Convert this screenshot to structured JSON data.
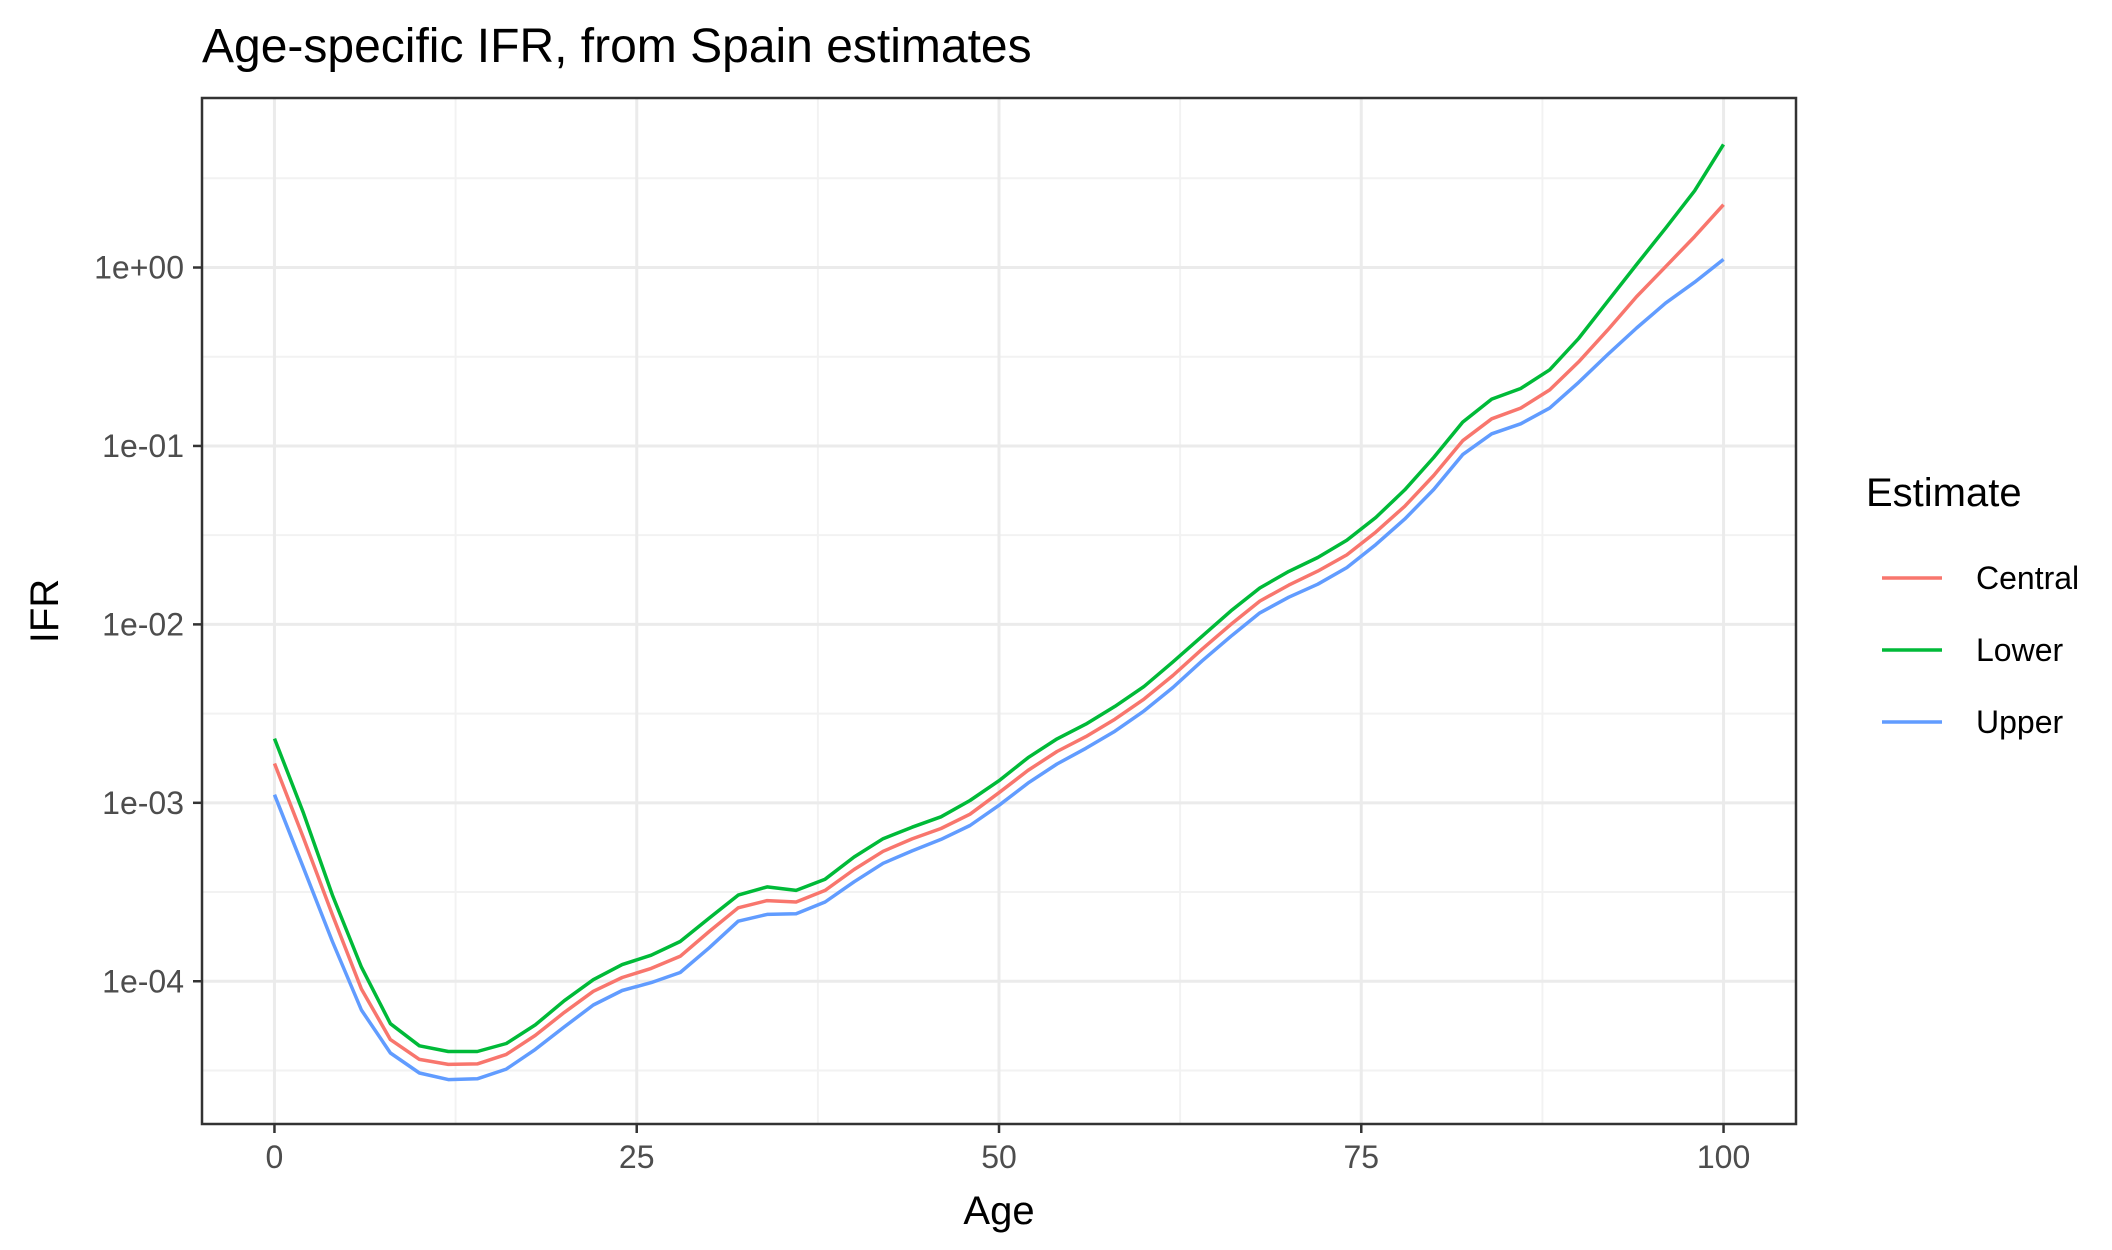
{
  "chart_data": {
    "type": "line",
    "title": "Age-specific IFR, from Spain estimates",
    "xlabel": "Age",
    "ylabel": "IFR",
    "xlim": [
      -5,
      105
    ],
    "ylim_log10": [
      -4.8,
      0.95
    ],
    "x_scale": "linear",
    "y_scale": "log10",
    "x_ticks": [
      {
        "value": 0,
        "label": "0"
      },
      {
        "value": 25,
        "label": "25"
      },
      {
        "value": 50,
        "label": "50"
      },
      {
        "value": 75,
        "label": "75"
      },
      {
        "value": 100,
        "label": "100"
      }
    ],
    "y_ticks": [
      {
        "value": 0.0001,
        "label": "1e-04"
      },
      {
        "value": 0.001,
        "label": "1e-03"
      },
      {
        "value": 0.01,
        "label": "1e-02"
      },
      {
        "value": 0.1,
        "label": "1e-01"
      },
      {
        "value": 1,
        "label": "1e+00"
      }
    ],
    "grid": true,
    "legend": {
      "title": "Estimate",
      "placement": "right",
      "entries": [
        {
          "label": "Central",
          "color": "#f8766d"
        },
        {
          "label": "Lower",
          "color": "#00ba38"
        },
        {
          "label": "Upper",
          "color": "#619cff"
        }
      ]
    },
    "series": [
      {
        "name": "Central",
        "color": "#f8766d",
        "x": [
          0,
          2,
          4,
          6,
          8,
          10,
          12,
          14,
          16,
          18,
          20,
          22,
          24,
          26,
          28,
          30,
          32,
          34,
          36,
          38,
          40,
          42,
          44,
          46,
          48,
          50,
          52,
          54,
          56,
          58,
          60,
          62,
          64,
          66,
          68,
          70,
          72,
          74,
          76,
          78,
          80,
          82,
          84,
          86,
          88,
          90,
          92,
          94,
          96,
          98,
          100
        ],
        "y": [
          0.00166,
          0.000637,
          0.000236,
          9.05e-05,
          4.71e-05,
          3.65e-05,
          3.42e-05,
          3.44e-05,
          3.89e-05,
          4.97e-05,
          6.69e-05,
          8.78e-05,
          0.000105,
          0.000118,
          0.000138,
          0.00019,
          0.000258,
          0.000283,
          0.000278,
          0.000323,
          0.000423,
          0.000535,
          0.000628,
          0.000718,
          0.000863,
          0.00114,
          0.00152,
          0.00194,
          0.00235,
          0.00294,
          0.00381,
          0.00517,
          0.00725,
          0.01,
          0.0135,
          0.0166,
          0.0199,
          0.0245,
          0.0329,
          0.0459,
          0.0683,
          0.107,
          0.142,
          0.163,
          0.206,
          0.296,
          0.446,
          0.687,
          1.01,
          1.49,
          2.25
        ]
      },
      {
        "name": "Lower",
        "color": "#00ba38",
        "x": [
          0,
          2,
          4,
          6,
          8,
          10,
          12,
          14,
          16,
          18,
          20,
          22,
          24,
          26,
          28,
          30,
          32,
          34,
          36,
          38,
          40,
          42,
          44,
          46,
          48,
          50,
          52,
          54,
          56,
          58,
          60,
          62,
          64,
          66,
          68,
          70,
          72,
          74,
          76,
          78,
          80,
          82,
          84,
          86,
          88,
          90,
          92,
          94,
          96,
          98,
          100
        ],
        "y": [
          0.00229,
          0.000878,
          0.000304,
          0.00012,
          5.78e-05,
          4.35e-05,
          4.04e-05,
          4.04e-05,
          4.48e-05,
          5.69e-05,
          7.78e-05,
          0.000102,
          0.000124,
          0.00014,
          0.000167,
          0.000226,
          0.000304,
          0.000338,
          0.000323,
          0.000373,
          0.000497,
          0.000629,
          0.00073,
          0.000835,
          0.00103,
          0.00133,
          0.00179,
          0.00228,
          0.00276,
          0.00347,
          0.00448,
          0.00616,
          0.00856,
          0.0119,
          0.016,
          0.0198,
          0.0237,
          0.0296,
          0.0397,
          0.0567,
          0.0862,
          0.136,
          0.183,
          0.21,
          0.267,
          0.4,
          0.646,
          1.04,
          1.66,
          2.69,
          4.9
        ]
      },
      {
        "name": "Upper",
        "color": "#619cff",
        "x": [
          0,
          2,
          4,
          6,
          8,
          10,
          12,
          14,
          16,
          18,
          20,
          22,
          24,
          26,
          28,
          30,
          32,
          34,
          36,
          38,
          40,
          42,
          44,
          46,
          48,
          50,
          52,
          54,
          56,
          58,
          60,
          62,
          64,
          66,
          68,
          70,
          72,
          74,
          76,
          78,
          80,
          82,
          84,
          86,
          88,
          90,
          92,
          94,
          96,
          98,
          100
        ],
        "y": [
          0.00111,
          0.000433,
          0.000167,
          6.9e-05,
          3.96e-05,
          3.06e-05,
          2.81e-05,
          2.84e-05,
          3.22e-05,
          4.15e-05,
          5.55e-05,
          7.36e-05,
          8.87e-05,
          9.83e-05,
          0.000112,
          0.000154,
          0.000217,
          0.000237,
          0.000239,
          0.000278,
          0.000361,
          0.000458,
          0.000538,
          0.000624,
          0.000746,
          0.000968,
          0.00129,
          0.00165,
          0.00202,
          0.00252,
          0.00327,
          0.00443,
          0.00623,
          0.00858,
          0.0116,
          0.0142,
          0.0168,
          0.0208,
          0.028,
          0.0389,
          0.057,
          0.0894,
          0.117,
          0.133,
          0.163,
          0.227,
          0.325,
          0.458,
          0.632,
          0.827,
          1.11
        ]
      }
    ]
  }
}
